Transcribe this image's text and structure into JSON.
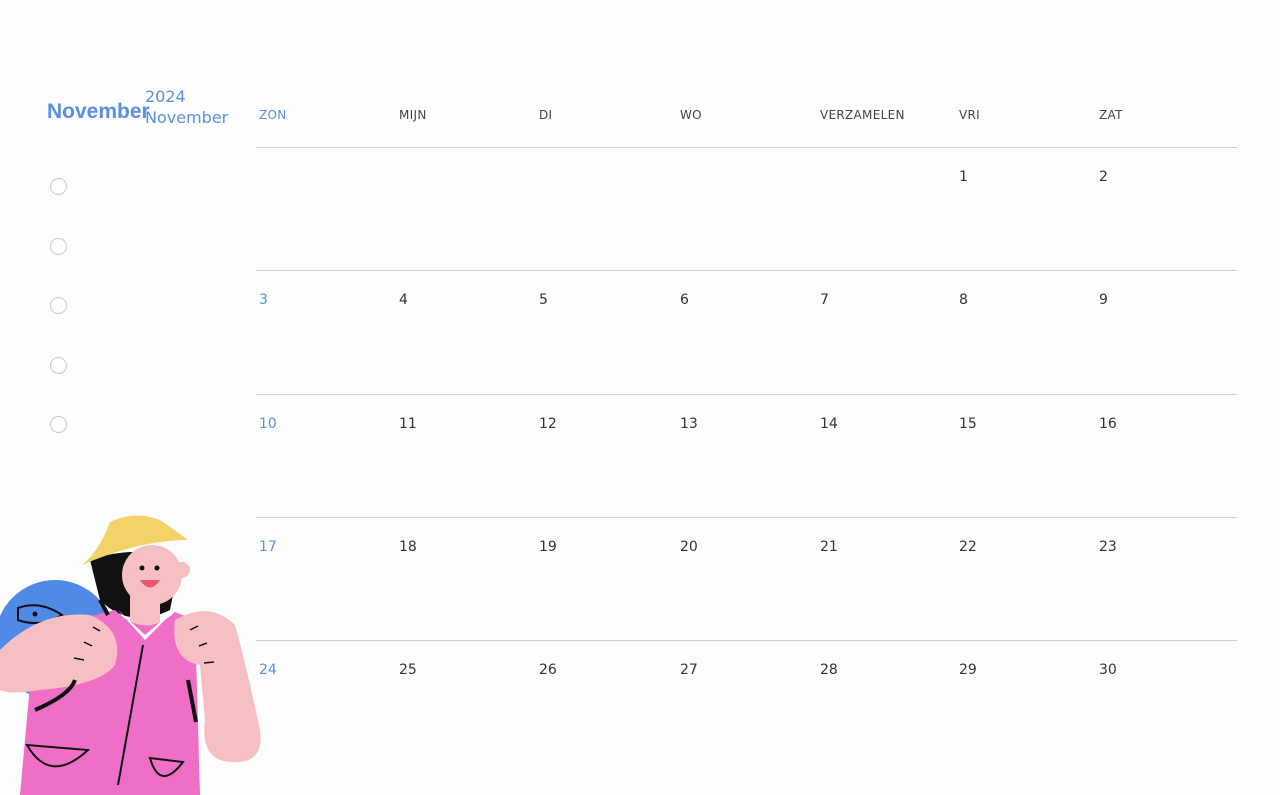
{
  "header": {
    "month_title": "November",
    "year": "2024",
    "month_subtitle": "November"
  },
  "weekdays": [
    "ZON",
    "MIJN",
    "DI",
    "WO",
    "VERZAMELEN",
    "VRI",
    "ZAT"
  ],
  "weeks": [
    [
      "",
      "",
      "",
      "",
      "",
      "1",
      "2"
    ],
    [
      "3",
      "4",
      "5",
      "6",
      "7",
      "8",
      "9"
    ],
    [
      "10",
      "11",
      "12",
      "13",
      "14",
      "15",
      "16"
    ],
    [
      "17",
      "18",
      "19",
      "20",
      "21",
      "22",
      "23"
    ],
    [
      "24",
      "25",
      "26",
      "27",
      "28",
      "29",
      "30"
    ]
  ],
  "checklist_count": 5,
  "colors": {
    "accent": "#5b8fe0",
    "text": "#333333",
    "divider": "#cfcfcf"
  }
}
